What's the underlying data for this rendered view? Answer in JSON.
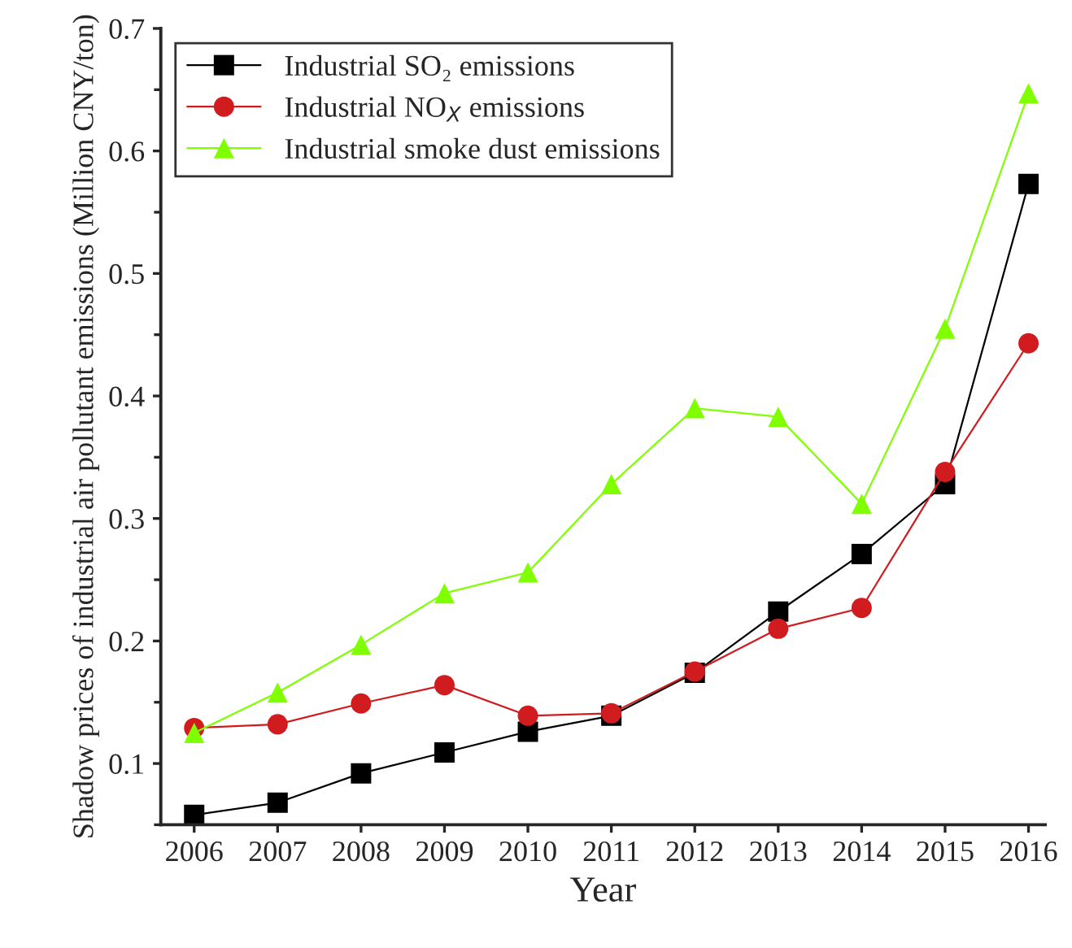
{
  "chart_data": {
    "type": "line",
    "xlabel": "Year",
    "ylabel": "Shadow prices of industrial air pollutant emissions (Million CNY/ton)",
    "x": [
      2006,
      2007,
      2008,
      2009,
      2010,
      2011,
      2012,
      2013,
      2014,
      2015,
      2016
    ],
    "series": [
      {
        "name": "Industrial SO₂ emissions",
        "color": "#000000",
        "marker": "square",
        "values": [
          0.058,
          0.068,
          0.092,
          0.109,
          0.126,
          0.139,
          0.174,
          0.224,
          0.271,
          0.328,
          0.573
        ]
      },
      {
        "name": "Industrial NO$_{X}$ emissions",
        "color": "#d01c1f",
        "marker": "circle",
        "values": [
          0.129,
          0.132,
          0.149,
          0.164,
          0.139,
          0.141,
          0.175,
          0.21,
          0.227,
          0.338,
          0.443
        ]
      },
      {
        "name": "Industrial smoke dust emissions",
        "color": "#7fff00",
        "marker": "triangle",
        "values": [
          0.125,
          0.158,
          0.197,
          0.239,
          0.256,
          0.328,
          0.39,
          0.383,
          0.312,
          0.455,
          0.647
        ]
      }
    ],
    "xlim": [
      2005.6,
      2016.2
    ],
    "ylim": [
      0.05,
      0.7
    ],
    "xticks": [
      2006,
      2007,
      2008,
      2009,
      2010,
      2011,
      2012,
      2013,
      2014,
      2015,
      2016
    ],
    "yticks": [
      0.1,
      0.2,
      0.3,
      0.4,
      0.5,
      0.6,
      0.7
    ],
    "grid": false,
    "legend": "top left",
    "line_style": "solid"
  }
}
